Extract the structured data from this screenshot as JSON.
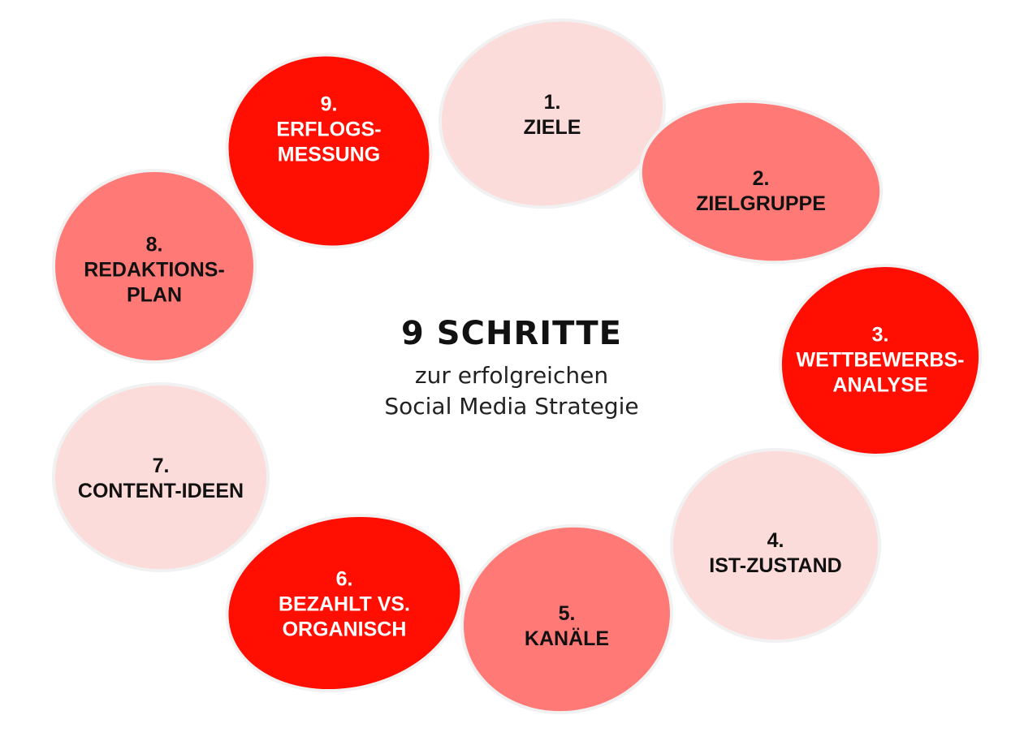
{
  "center": {
    "title": "9 SCHRITTE",
    "subtitle_line1": "zur erfolgreichen",
    "subtitle_line2": "Social Media Strategie"
  },
  "colors": {
    "light": "#fcdcda",
    "medium": "#ff7a76",
    "strong": "#ff0e01",
    "dark_text": "#111111",
    "light_text": "#ffffff"
  },
  "steps": [
    {
      "number": "1.",
      "lines": [
        "ZIELE"
      ],
      "tone": "light"
    },
    {
      "number": "2.",
      "lines": [
        "ZIELGRUPPE"
      ],
      "tone": "medium"
    },
    {
      "number": "3.",
      "lines": [
        "WETTBEWERBS-",
        "ANALYSE"
      ],
      "tone": "strong"
    },
    {
      "number": "4.",
      "lines": [
        "IST-ZUSTAND"
      ],
      "tone": "light"
    },
    {
      "number": "5.",
      "lines": [
        "KANÄLE"
      ],
      "tone": "medium"
    },
    {
      "number": "6.",
      "lines": [
        "BEZAHLT VS.",
        "ORGANISCH"
      ],
      "tone": "strong"
    },
    {
      "number": "7.",
      "lines": [
        "CONTENT-IDEEN"
      ],
      "tone": "light"
    },
    {
      "number": "8.",
      "lines": [
        "REDAKTIONS-",
        "PLAN"
      ],
      "tone": "medium"
    },
    {
      "number": "9.",
      "lines": [
        "ERFLOGS-",
        "MESSUNG"
      ],
      "tone": "strong"
    }
  ]
}
